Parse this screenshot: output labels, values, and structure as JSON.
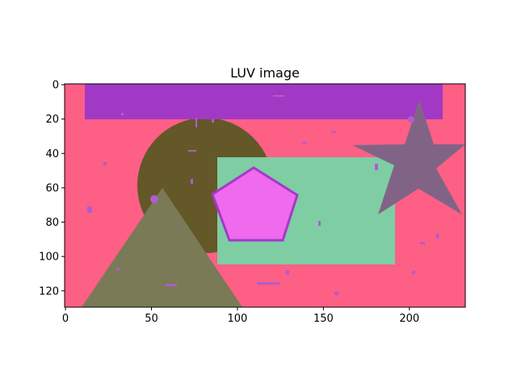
{
  "title": "LUV image",
  "axes": {
    "x_ticks": [
      0,
      50,
      100,
      150,
      200
    ],
    "y_ticks": [
      0,
      20,
      40,
      60,
      80,
      100,
      120
    ],
    "xlim": [
      -0.5,
      232.5
    ],
    "ylim": [
      129.5,
      -0.5
    ]
  },
  "colors": {
    "background": "#fe5f85",
    "top_bar": "#a139c5",
    "circle": "#645728",
    "rectangle": "#7ecda3",
    "pentagon": "#ef6aed",
    "pentagon_outline": "#a439c9",
    "triangle": "#7a7a56",
    "star": "#816485",
    "speckle": "#b15bd0"
  }
}
